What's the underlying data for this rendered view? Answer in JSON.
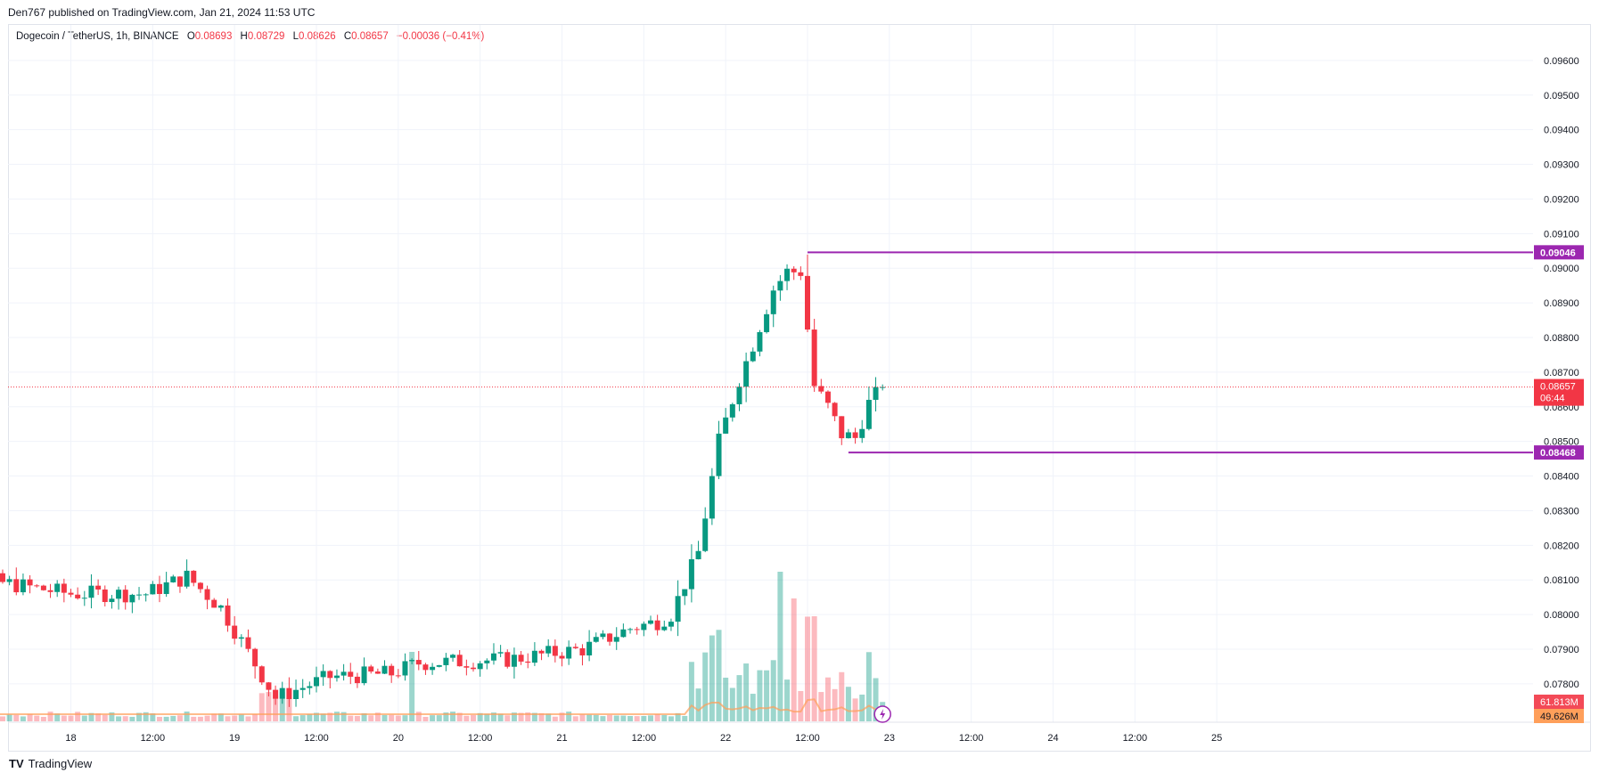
{
  "header": {
    "published": "Den767 published on TradingView.com, Jan 21, 2024 11:53 UTC"
  },
  "symbol": {
    "name": "Dogecoin / TetherUS, 1h, BINANCE",
    "o_label": "O",
    "o_value": "0.08693",
    "h_label": "H",
    "h_value": "0.08729",
    "l_label": "L",
    "l_value": "0.08626",
    "c_label": "C",
    "c_value": "0.08657",
    "change": "−0.00036 (−0.41%)"
  },
  "footer": {
    "brand": "TradingView",
    "logo": "TV"
  },
  "colors": {
    "up": "#089981",
    "down": "#f23645",
    "level": "#9c27b0",
    "volume_down": "#f7525f",
    "volume_ma": "#ff9f5a"
  },
  "chart_data": {
    "type": "candlestick",
    "y_axis": {
      "ticks": [
        "0.09600",
        "0.09500",
        "0.09400",
        "0.09300",
        "0.09200",
        "0.09100",
        "0.09000",
        "0.08900",
        "0.08800",
        "0.08700",
        "0.08600",
        "0.08500",
        "0.08400",
        "0.08300",
        "0.08200",
        "0.08100",
        "0.08000",
        "0.07900",
        "0.07800"
      ],
      "range": [
        0.0772,
        0.097
      ]
    },
    "x_axis": {
      "labels": [
        "12:00",
        "18",
        "12:00",
        "19",
        "12:00",
        "20",
        "12:00",
        "21",
        "12:00",
        "22",
        "12:00",
        "23",
        "12:00",
        "24",
        "12:00",
        "25"
      ],
      "label_hours": [
        -120,
        -108,
        -96,
        -84,
        -72,
        -60,
        -48,
        -36,
        -24,
        -12,
        0,
        12,
        24,
        36,
        48,
        60
      ]
    },
    "levels": [
      {
        "label": "0.09046",
        "value": 0.09046,
        "start_hour": 0
      },
      {
        "label": "0.08468",
        "value": 0.08468,
        "start_hour": 6
      }
    ],
    "last_price": {
      "label": "0.08657",
      "countdown": "06:44",
      "value": 0.08657
    },
    "volume_labels": {
      "last_volume": "61.813M",
      "volume_ma": "49.626M"
    },
    "key_closes": [
      {
        "hour": -130,
        "close": 0.0813
      },
      {
        "hour": -108,
        "close": 0.0806
      },
      {
        "hour": -97,
        "close": 0.0806
      },
      {
        "hour": -91,
        "close": 0.0811
      },
      {
        "hour": -86,
        "close": 0.0802
      },
      {
        "hour": -78,
        "close": 0.0776
      },
      {
        "hour": -70,
        "close": 0.0782
      },
      {
        "hour": -61,
        "close": 0.0783
      },
      {
        "hour": -57,
        "close": 0.0786
      },
      {
        "hour": -44,
        "close": 0.0787
      },
      {
        "hour": -33,
        "close": 0.079
      },
      {
        "hour": -26,
        "close": 0.0796
      },
      {
        "hour": -22,
        "close": 0.0798
      },
      {
        "hour": -20,
        "close": 0.08
      },
      {
        "hour": -16,
        "close": 0.0818
      },
      {
        "hour": -13,
        "close": 0.085
      },
      {
        "hour": -10,
        "close": 0.0868
      },
      {
        "hour": -8,
        "close": 0.0878
      },
      {
        "hour": -5,
        "close": 0.0894
      },
      {
        "hour": -3,
        "close": 0.0899
      },
      {
        "hour": -1,
        "close": 0.0899
      },
      {
        "hour": 1,
        "close": 0.0866
      },
      {
        "hour": 3,
        "close": 0.086
      },
      {
        "hour": 5,
        "close": 0.0852
      },
      {
        "hour": 7,
        "close": 0.0851
      },
      {
        "hour": 9,
        "close": 0.0861
      },
      {
        "hour": 11,
        "close": 0.08657
      }
    ]
  }
}
